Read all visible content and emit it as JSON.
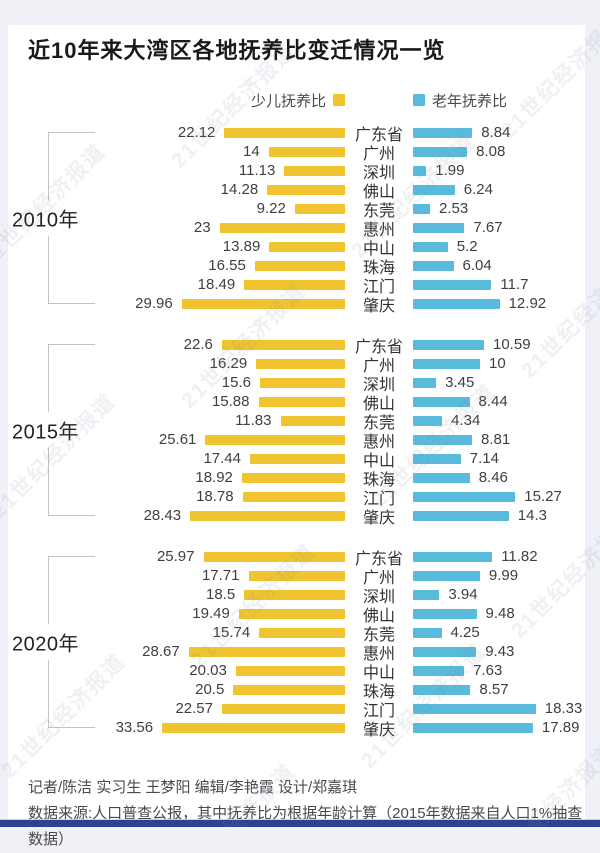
{
  "header": {
    "title": "近10年来大湾区各地抚养比变迁情况一览"
  },
  "watermark": {
    "text": "21世纪经济报道"
  },
  "footer": {
    "credits": "记者/陈洁  实习生 王梦阳  编辑/李艳霞  设计/郑嘉琪",
    "source": "数据来源:人口普查公报，其中抚养比为根据年龄计算（2015年数据来自人口1%抽查数据）"
  },
  "chart_data": {
    "type": "bar",
    "orientation": "horizontal-tornado",
    "title": "近10年来大湾区各地抚养比变迁情况一览",
    "legend": [
      "少儿抚养比",
      "老年抚养比"
    ],
    "colors": {
      "child": "#F0C42E",
      "elder": "#58BBDC",
      "bottom_bar": "#2D4391"
    },
    "categories": [
      "广东省",
      "广州",
      "深圳",
      "佛山",
      "东莞",
      "惠州",
      "中山",
      "珠海",
      "江门",
      "肇庆"
    ],
    "groups": [
      {
        "year": "2010年",
        "series": [
          {
            "name": "少儿抚养比",
            "values": [
              22.12,
              14,
              11.13,
              14.28,
              9.22,
              23,
              13.89,
              16.55,
              18.49,
              29.96
            ]
          },
          {
            "name": "老年抚养比",
            "values": [
              8.84,
              8.08,
              1.99,
              6.24,
              2.53,
              7.67,
              5.2,
              6.04,
              11.7,
              12.92
            ]
          }
        ]
      },
      {
        "year": "2015年",
        "series": [
          {
            "name": "少儿抚养比",
            "values": [
              22.6,
              16.29,
              15.6,
              15.88,
              11.83,
              25.61,
              17.44,
              18.92,
              18.78,
              28.43
            ]
          },
          {
            "name": "老年抚养比",
            "values": [
              10.59,
              10,
              3.45,
              8.44,
              4.34,
              8.81,
              7.14,
              8.46,
              15.27,
              14.3
            ]
          }
        ]
      },
      {
        "year": "2020年",
        "series": [
          {
            "name": "少儿抚养比",
            "values": [
              25.97,
              17.71,
              18.5,
              19.49,
              15.74,
              28.67,
              20.03,
              20.5,
              22.57,
              33.56
            ]
          },
          {
            "name": "老年抚养比",
            "values": [
              11.82,
              9.99,
              3.94,
              9.48,
              4.25,
              9.43,
              7.63,
              8.57,
              18.33,
              17.89
            ]
          }
        ]
      }
    ]
  }
}
